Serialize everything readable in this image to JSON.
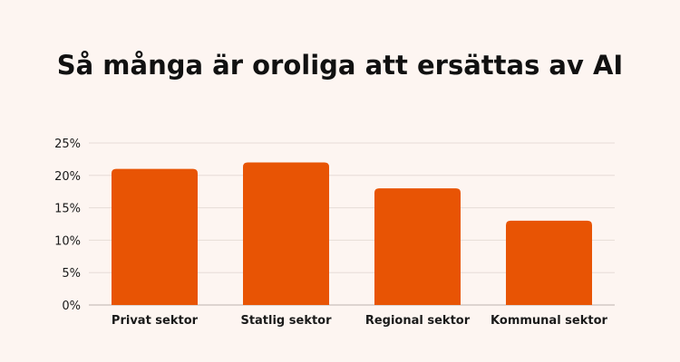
{
  "chart_data": {
    "type": "bar",
    "title": "Så många är oroliga att ersättas av AI",
    "xlabel": "",
    "ylabel": "",
    "categories": [
      "Privat sektor",
      "Statlig sektor",
      "Regional sektor",
      "Kommunal sektor"
    ],
    "values": [
      21,
      22,
      18,
      13
    ],
    "ylim": [
      0,
      25
    ],
    "yticks": [
      0,
      5,
      10,
      15,
      20,
      25
    ],
    "ytick_format": "%",
    "grid": true,
    "legend": "none",
    "bar_color": "#e85404"
  }
}
